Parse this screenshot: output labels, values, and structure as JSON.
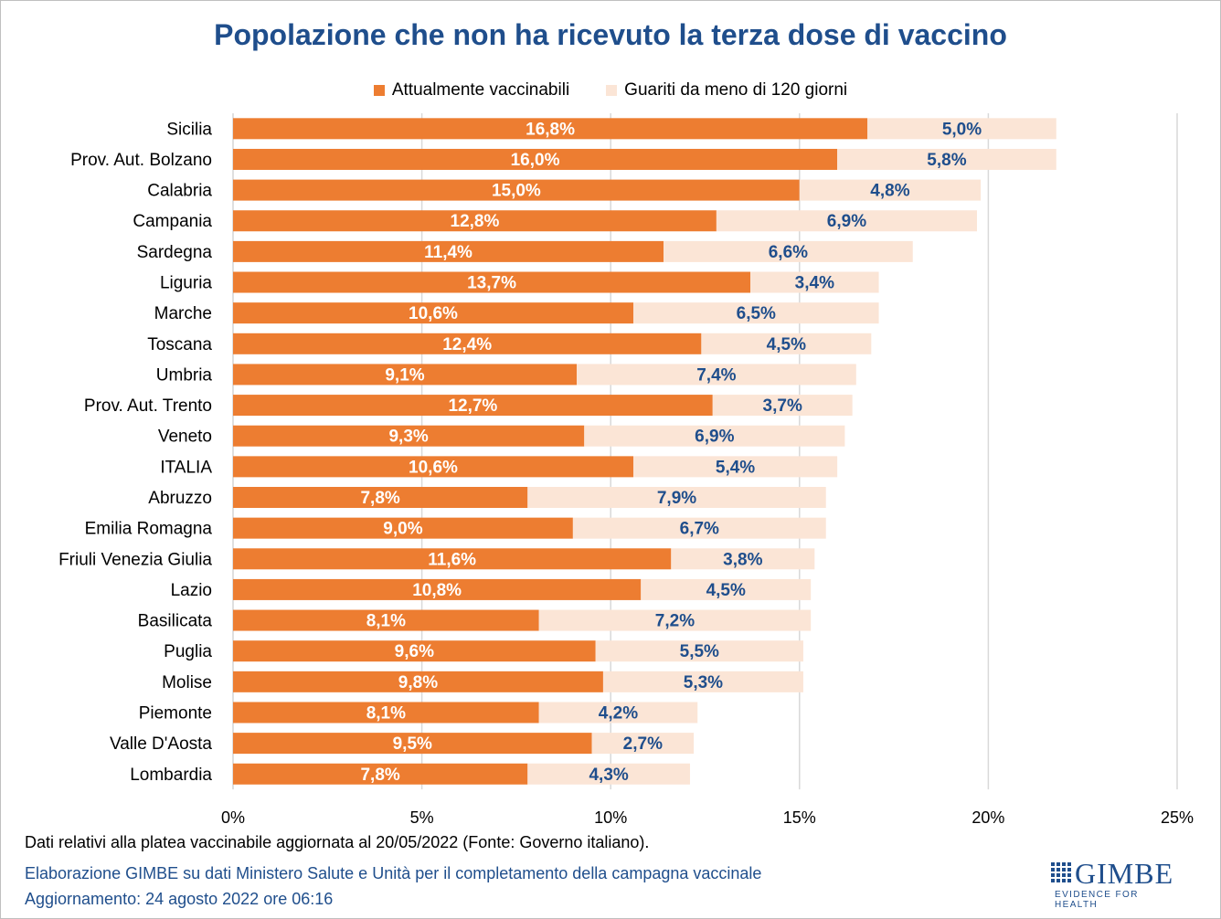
{
  "chart_data": {
    "type": "bar",
    "orientation": "horizontal",
    "stacked": true,
    "title": "Popolazione che non ha ricevuto la terza dose di vaccino",
    "categories": [
      "Sicilia",
      "Prov. Aut. Bolzano",
      "Calabria",
      "Campania",
      "Sardegna",
      "Liguria",
      "Marche",
      "Toscana",
      "Umbria",
      "Prov. Aut. Trento",
      "Veneto",
      "ITALIA",
      "Abruzzo",
      "Emilia Romagna",
      "Friuli Venezia Giulia",
      "Lazio",
      "Basilicata",
      "Puglia",
      "Molise",
      "Piemonte",
      "Valle D'Aosta",
      "Lombardia"
    ],
    "series": [
      {
        "name": "Attualmente vaccinabili",
        "color": "#ed7d31",
        "values": [
          16.8,
          16.0,
          15.0,
          12.8,
          11.4,
          13.7,
          10.6,
          12.4,
          9.1,
          12.7,
          9.3,
          10.6,
          7.8,
          9.0,
          11.6,
          10.8,
          8.1,
          9.6,
          9.8,
          8.1,
          9.5,
          7.8
        ],
        "labels": [
          "16,8%",
          "16,0%",
          "15,0%",
          "12,8%",
          "11,4%",
          "13,7%",
          "10,6%",
          "12,4%",
          "9,1%",
          "12,7%",
          "9,3%",
          "10,6%",
          "7,8%",
          "9,0%",
          "11,6%",
          "10,8%",
          "8,1%",
          "9,6%",
          "9,8%",
          "8,1%",
          "9,5%",
          "7,8%"
        ]
      },
      {
        "name": "Guariti da meno di 120 giorni",
        "color": "#fbe5d6",
        "values": [
          5.0,
          5.8,
          4.8,
          6.9,
          6.6,
          3.4,
          6.5,
          4.5,
          7.4,
          3.7,
          6.9,
          5.4,
          7.9,
          6.7,
          3.8,
          4.5,
          7.2,
          5.5,
          5.3,
          4.2,
          2.7,
          4.3
        ],
        "labels": [
          "5,0%",
          "5,8%",
          "4,8%",
          "6,9%",
          "6,6%",
          "3,4%",
          "6,5%",
          "4,5%",
          "7,4%",
          "3,7%",
          "6,9%",
          "5,4%",
          "7,9%",
          "6,7%",
          "3,8%",
          "4,5%",
          "7,2%",
          "5,5%",
          "5,3%",
          "4,2%",
          "2,7%",
          "4,3%"
        ]
      }
    ],
    "xlim": [
      0,
      25
    ],
    "xticks": [
      0,
      5,
      10,
      15,
      20,
      25
    ],
    "xtick_labels": [
      "0%",
      "5%",
      "10%",
      "15%",
      "20%",
      "25%"
    ],
    "grid": "vertical",
    "legend": "top-center",
    "colors": {
      "title": "#1f4e8c",
      "label_dark": "#1f4e8c",
      "label_light": "#ffffff",
      "grid": "#d9d9d9"
    }
  },
  "footer": {
    "line1": "Dati relativi alla platea vaccinabile aggiornata al 20/05/2022 (Fonte: Governo italiano).",
    "line2": "Elaborazione GIMBE su dati Ministero Salute e Unità per il completamento della campagna vaccinale",
    "line3": "Aggiornamento: 24 agosto 2022 ore 06:16"
  },
  "logo": {
    "name": "GIMBE",
    "tagline": "EVIDENCE FOR HEALTH",
    "icon": "gimbe-grid-icon"
  }
}
